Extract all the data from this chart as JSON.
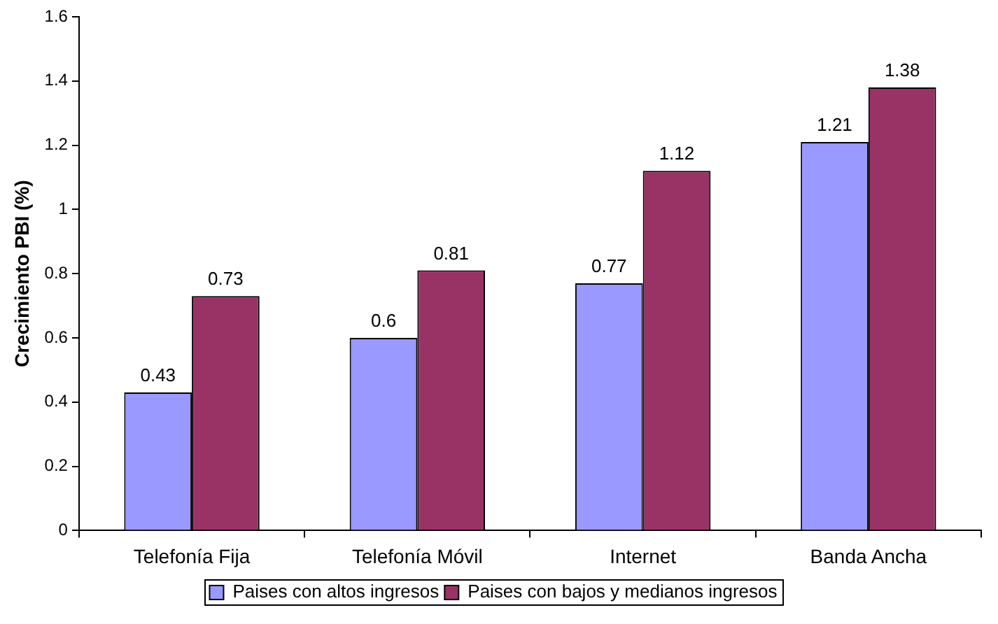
{
  "chart_data": {
    "type": "bar",
    "ylabel": "Crecimiento PBI (%)",
    "categories": [
      "Telefonía Fija",
      "Telefonía Móvil",
      "Internet",
      "Banda Ancha"
    ],
    "series": [
      {
        "name": "Paises con altos ingresos",
        "color": "#9999ff",
        "values": [
          0.43,
          0.6,
          0.77,
          1.21
        ]
      },
      {
        "name": "Paises con bajos y medianos ingresos",
        "color": "#993366",
        "values": [
          0.73,
          0.81,
          1.12,
          1.38
        ]
      }
    ],
    "ylim": [
      0,
      1.6
    ],
    "yticks": [
      0,
      0.2,
      0.4,
      0.6,
      0.8,
      1,
      1.2,
      1.4,
      1.6
    ],
    "grid": false,
    "legend": "bottom",
    "data_labels": true
  }
}
